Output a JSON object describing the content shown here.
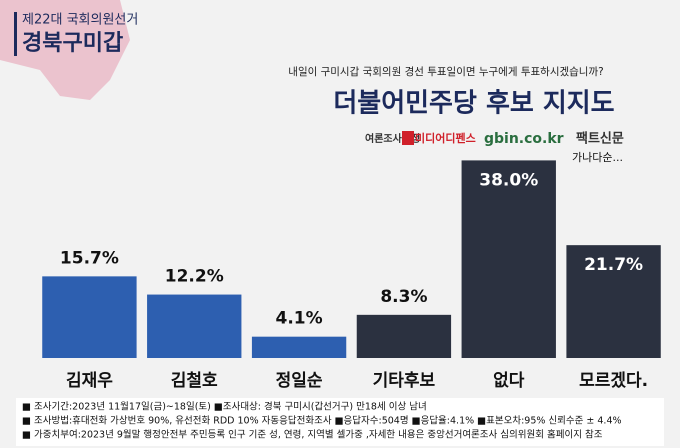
{
  "chart_data": {
    "type": "bar",
    "badge": "제22대 국회의원선거",
    "region": "경북구미갑",
    "question": "내일이  구미시갑 국회의원 경선 투표일이면 누구에게 투표하시겠습니까?",
    "title": "더불어민주당 후보 지지도",
    "sources": [
      "여론조사공정",
      "미디어디펜스",
      "gbin.co.kr",
      "팩트신문"
    ],
    "annotation": "가나다순...",
    "categories": [
      "김재우",
      "김철호",
      "정일순",
      "기타후보",
      "없다",
      "모르겠다."
    ],
    "values": [
      15.7,
      12.2,
      4.1,
      8.3,
      38.0,
      21.7
    ],
    "value_labels": [
      "15.7%",
      "12.2%",
      "4.1%",
      "8.3%",
      "38.0%",
      "21.7%"
    ],
    "colors": [
      "#2d5fb0",
      "#2d5fb0",
      "#2d5fb0",
      "#2b3140",
      "#2b3140",
      "#2b3140"
    ],
    "ylim": [
      0,
      40
    ],
    "notes": [
      "■ 조사기간:2023년 11월17일(금)~18일(토)  ■조사대상: 경북 구미시(갑선거구) 만18세 이상 남녀",
      "■ 조사방법:휴대전화 가상번호 90%, 유선전화 RDD 10% 자동응답전화조사 ■응답자수:504명 ■응답율:4.1% ■표본오차:95% 신뢰수준 ± 4.4%",
      "■ 가중치부여:2023년 9월말 행정안전부 주민등록 인구 기준 성, 연령, 지역별 셀가중 ,자세한 내용은 중앙선거여론조사 심의위원회 홈페이지 참조"
    ]
  }
}
